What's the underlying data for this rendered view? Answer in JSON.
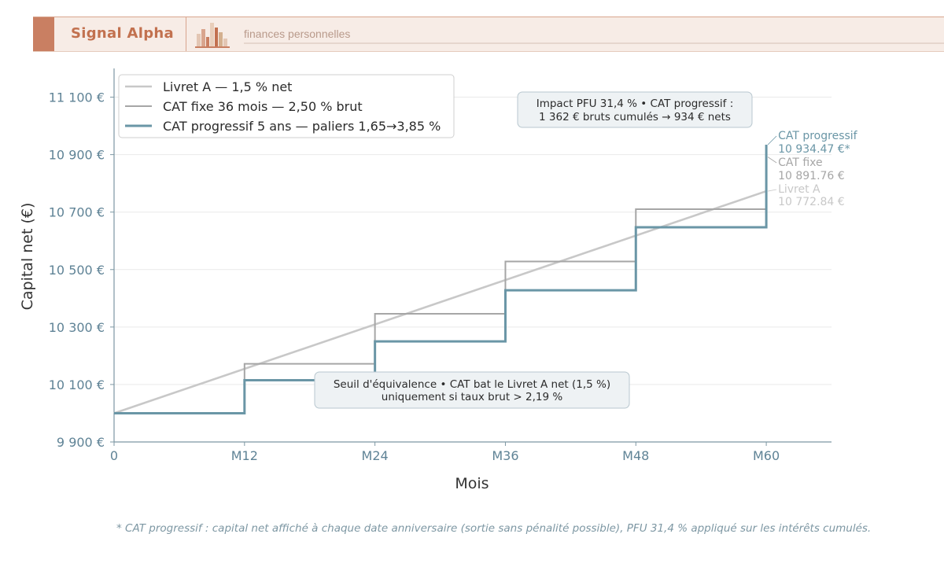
{
  "header": {
    "brand": "Signal Alpha",
    "tagline": "finances personnelles",
    "colors": {
      "accent": "#c97f62",
      "band": "#f7ece6",
      "brand": "#c2714f"
    }
  },
  "chart_data": {
    "type": "line",
    "xlabel": "Mois",
    "ylabel": "Capital net (€)",
    "xlim": [
      0,
      66
    ],
    "ylim": [
      9900,
      11200
    ],
    "x_ticks": [
      {
        "value": 0,
        "label": "0"
      },
      {
        "value": 12,
        "label": "M12"
      },
      {
        "value": 24,
        "label": "M24"
      },
      {
        "value": 36,
        "label": "M36"
      },
      {
        "value": 48,
        "label": "M48"
      },
      {
        "value": 60,
        "label": "M60"
      }
    ],
    "y_ticks": [
      {
        "value": 9900,
        "label": "9 900 €"
      },
      {
        "value": 10100,
        "label": "10 100 €"
      },
      {
        "value": 10300,
        "label": "10 300 €"
      },
      {
        "value": 10500,
        "label": "10 500 €"
      },
      {
        "value": 10700,
        "label": "10 700 €"
      },
      {
        "value": 10900,
        "label": "10 900 €"
      },
      {
        "value": 11100,
        "label": "11 100 €"
      }
    ],
    "grid": "horizontal",
    "legend_position": "top-left",
    "series": [
      {
        "name": "Livret A — 1,5 % net",
        "color": "#c8c8c8",
        "step": false,
        "points": [
          [
            0,
            10000
          ],
          [
            60,
            10772.84
          ]
        ],
        "end_label": [
          "Livret A",
          "10 772.84 €"
        ]
      },
      {
        "name": "CAT fixe 36 mois — 2,50 % brut",
        "color": "#a6a6a6",
        "step": true,
        "points": [
          [
            0,
            10000
          ],
          [
            12,
            10172
          ],
          [
            24,
            10346
          ],
          [
            36,
            10528
          ],
          [
            48,
            10710
          ],
          [
            60,
            10891.76
          ]
        ],
        "end_label": [
          "CAT fixe",
          "10 891.76 €"
        ]
      },
      {
        "name": "CAT progressif 5 ans — paliers 1,65→3,85 %",
        "color": "#6a96a6",
        "step": true,
        "points": [
          [
            0,
            10000
          ],
          [
            12,
            10115
          ],
          [
            24,
            10250
          ],
          [
            36,
            10428
          ],
          [
            48,
            10647
          ],
          [
            60,
            10934.47
          ]
        ],
        "end_label": [
          "CAT progressif",
          "10 934.47 €*"
        ]
      }
    ],
    "annotations": [
      {
        "lines": [
          "Impact PFU 31,4 %  •  CAT progressif :",
          "1 362 € bruts cumulés → 934 € nets"
        ]
      },
      {
        "lines": [
          "Seuil d'équivalence  •  CAT bat le Livret A net (1,5 %)",
          "uniquement si taux brut > 2,19 %"
        ]
      }
    ]
  },
  "footnote": "* CAT progressif : capital net affiché à chaque date anniversaire (sortie sans pénalité possible), PFU 31,4 % appliqué sur les intérêts cumulés."
}
